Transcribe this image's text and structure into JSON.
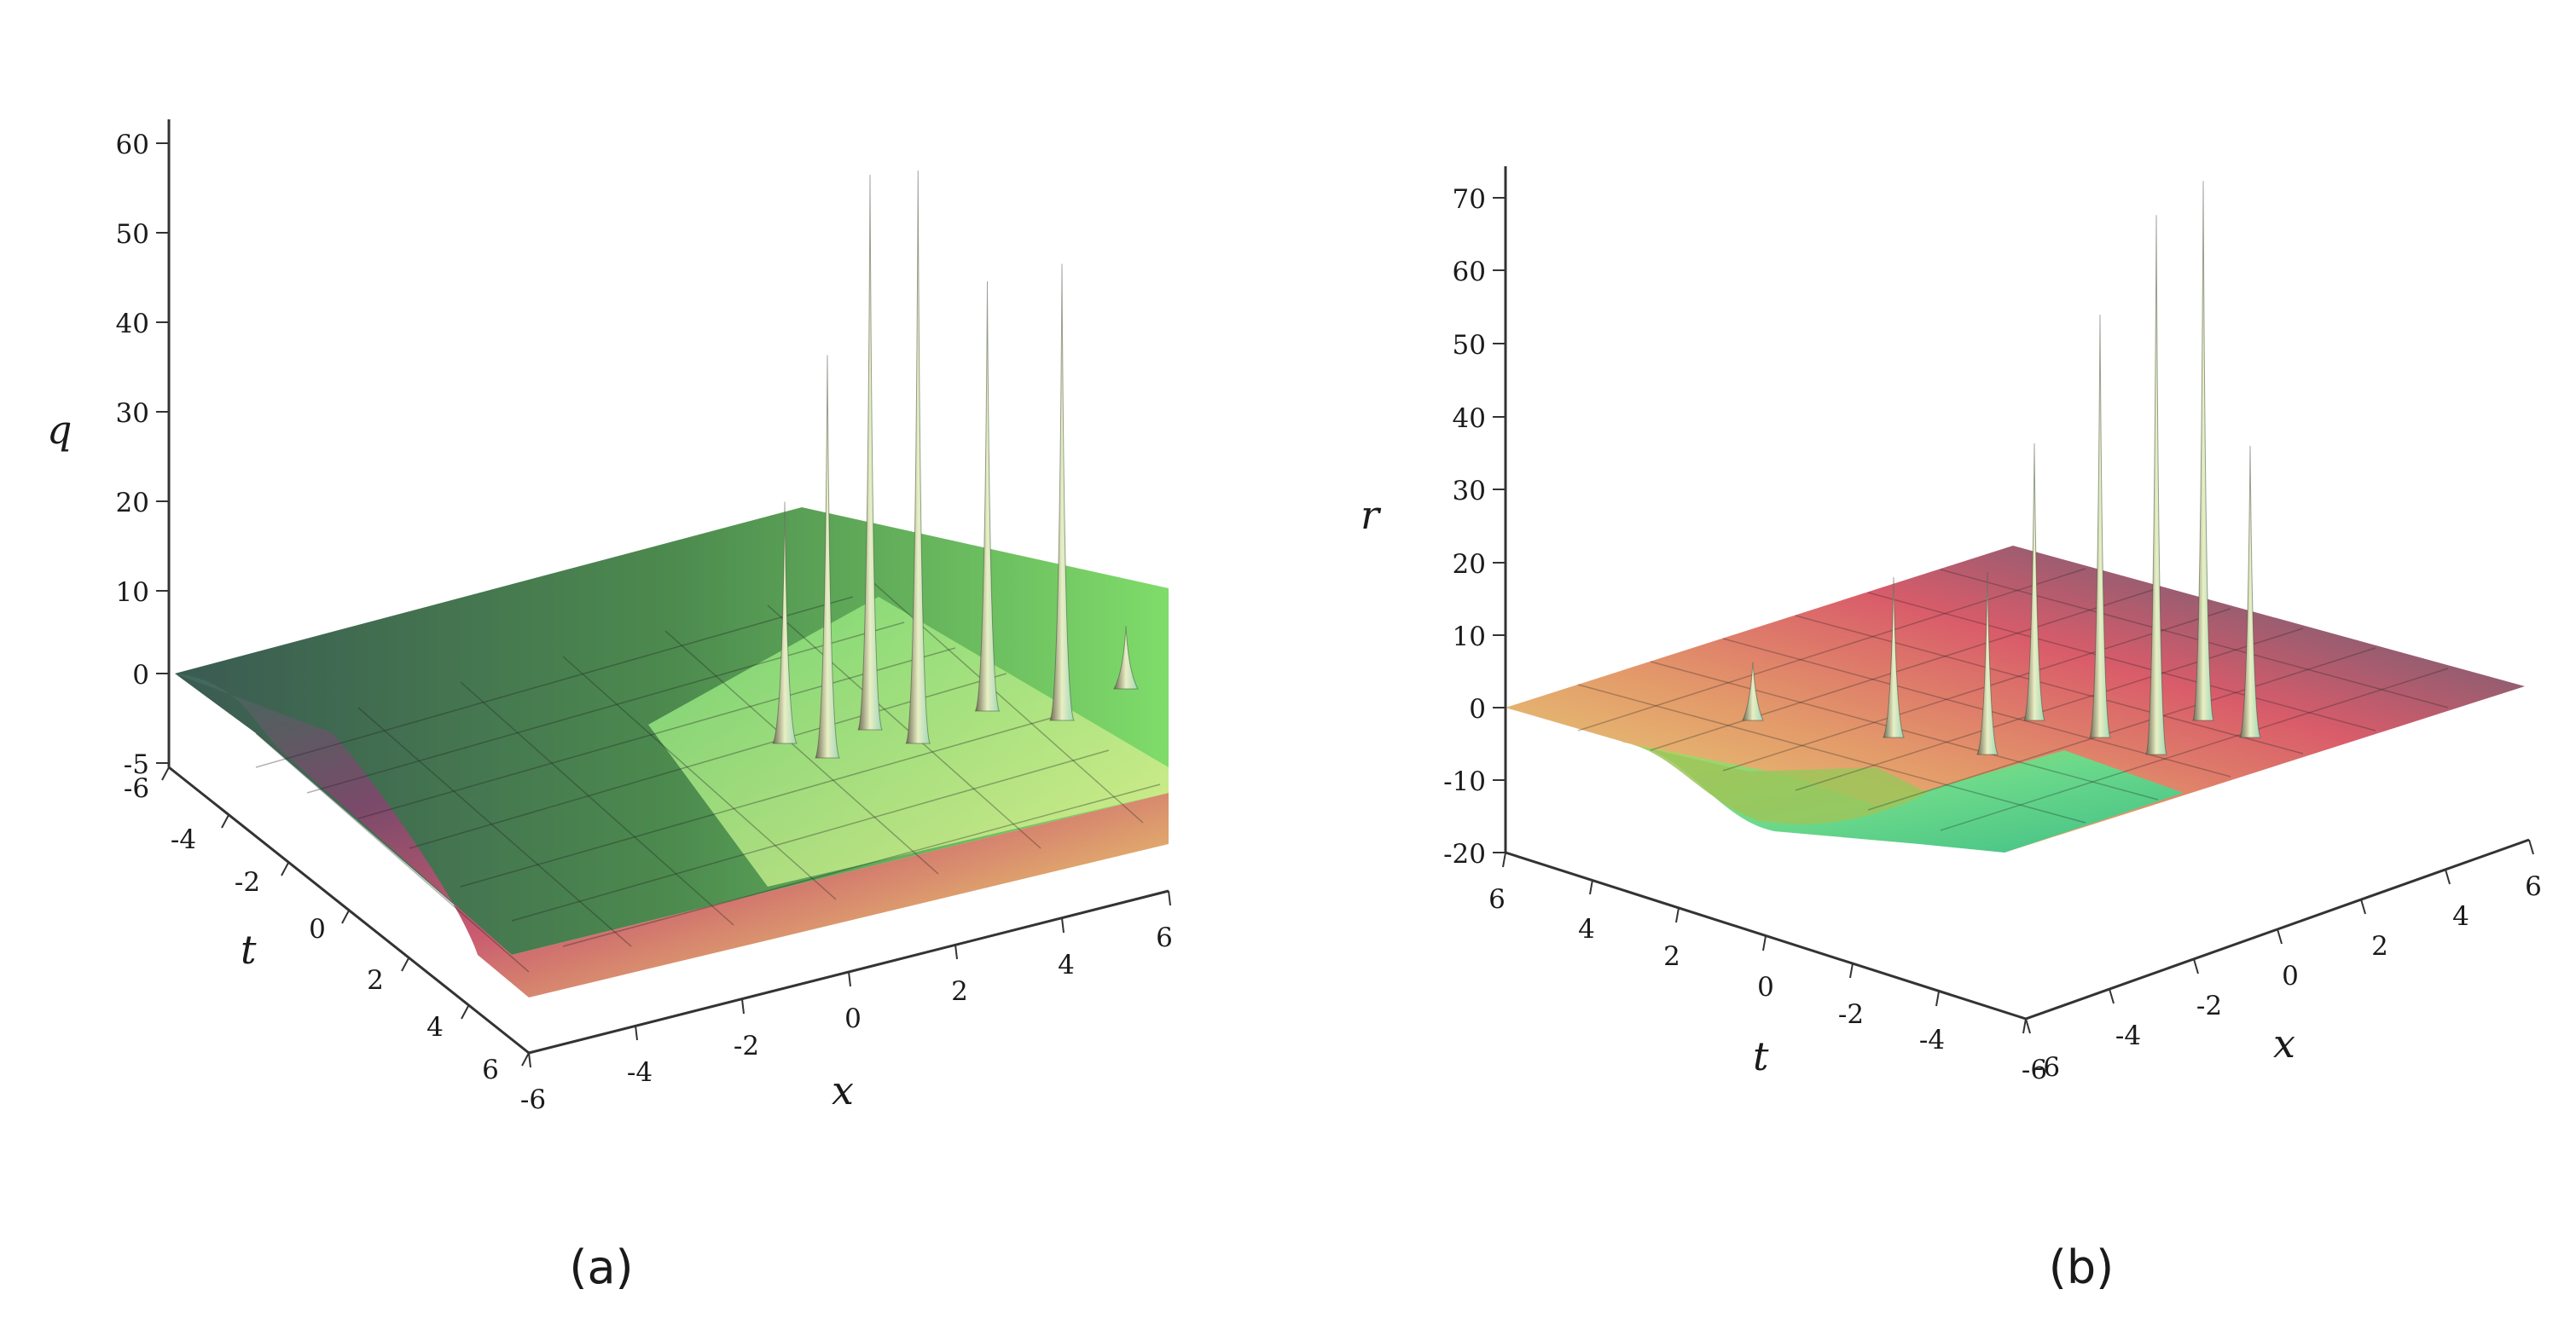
{
  "chart_data": [
    {
      "type": "surface3d",
      "caption": "(a)",
      "zlabel": "q",
      "xlabel": "x",
      "tlabel": "t",
      "zlim": [
        -6,
        65
      ],
      "xlim": [
        -6,
        6
      ],
      "tlim": [
        -6,
        6
      ],
      "z_ticks": [
        "60",
        "50",
        "40",
        "30",
        "20",
        "10",
        "0",
        "-5"
      ],
      "x_ticks": [
        "-6",
        "-4",
        "-2",
        "0",
        "2",
        "4",
        "6"
      ],
      "t_ticks": [
        "-6",
        "-4",
        "-2",
        "0",
        "2",
        "4",
        "6"
      ],
      "surface": "kink step from z=0 down to z=-5 along t with localized spikes near x in [-1,5]",
      "peaks": [
        {
          "x": -1.2,
          "z": 27
        },
        {
          "x": -0.4,
          "z": 45
        },
        {
          "x": 0.4,
          "z": 62
        },
        {
          "x": 1.3,
          "z": 64
        },
        {
          "x": 2.6,
          "z": 48
        },
        {
          "x": 4.0,
          "z": 51
        },
        {
          "x": 5.2,
          "z": 7
        }
      ]
    },
    {
      "type": "surface3d",
      "caption": "(b)",
      "zlabel": "r",
      "xlabel": "x",
      "tlabel": "t",
      "zlim": [
        -20,
        75
      ],
      "xlim": [
        -6,
        6
      ],
      "tlim": [
        -6,
        6
      ],
      "z_ticks": [
        "70",
        "60",
        "50",
        "40",
        "30",
        "20",
        "10",
        "0",
        "-10",
        "-20"
      ],
      "x_ticks": [
        "-6",
        "-4",
        "-2",
        "0",
        "2",
        "4",
        "6"
      ],
      "t_ticks": [
        "6",
        "4",
        "2",
        "0",
        "-2",
        "-4",
        "-6"
      ],
      "surface": "flat plane z=0 with trough down to z=-15 and localized spikes",
      "peaks": [
        {
          "x": 2.5,
          "z": 8
        },
        {
          "x": 1.0,
          "z": 22
        },
        {
          "x": 0.0,
          "z": 25
        },
        {
          "x": -0.5,
          "z": 38
        },
        {
          "x": -1.2,
          "z": 58
        },
        {
          "x": -1.8,
          "z": 74
        },
        {
          "x": -2.3,
          "z": 74
        },
        {
          "x": -2.8,
          "z": 40
        }
      ]
    }
  ]
}
